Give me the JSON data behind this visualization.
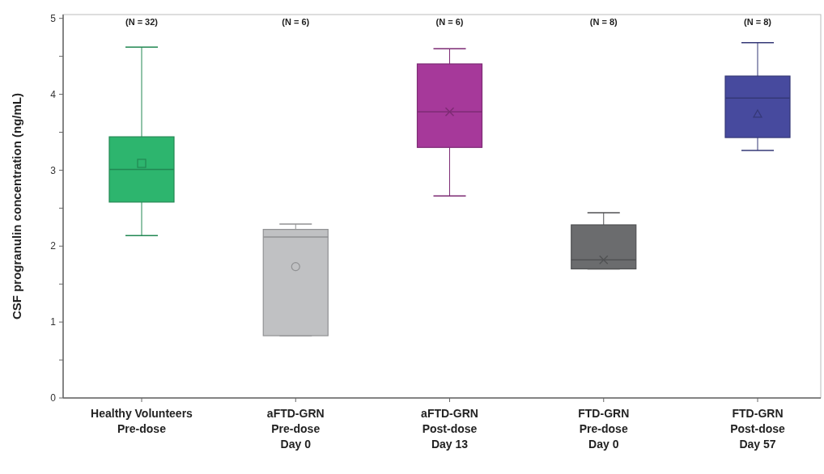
{
  "chart_data": {
    "type": "box",
    "ylabel": "CSF progranulin concentration (ng/mL)",
    "categories": [
      "Healthy Volunteers\nPre-dose",
      "aFTD-GRN\nPre-dose\nDay 0",
      "aFTD-GRN\nPost-dose\nDay 13",
      "FTD-GRN\nPre-dose\nDay 0",
      "FTD-GRN\nPost-dose\nDay 57"
    ],
    "series": [
      {
        "color": "#2db56e",
        "marker": "square",
        "boxes": [
          {
            "low": 2.14,
            "q1": 2.58,
            "median": 3.01,
            "q3": 3.44,
            "high": 4.62,
            "mean": 3.09
          },
          null,
          null,
          null,
          null
        ]
      },
      {
        "color": "#c0c1c3",
        "marker": "circle",
        "boxes": [
          null,
          {
            "low": 0.82,
            "q1": 0.82,
            "median": 2.12,
            "q3": 2.22,
            "high": 2.29,
            "mean": 1.73
          },
          null,
          null,
          null
        ]
      },
      {
        "color": "#a6399a",
        "marker": "cross",
        "boxes": [
          null,
          null,
          {
            "low": 2.66,
            "q1": 3.3,
            "median": 3.77,
            "q3": 4.4,
            "high": 4.6,
            "mean": 3.77
          },
          null,
          null
        ]
      },
      {
        "color": "#6b6c6e",
        "marker": "cross",
        "boxes": [
          null,
          null,
          null,
          {
            "low": 1.7,
            "q1": 1.7,
            "median": 1.82,
            "q3": 2.28,
            "high": 2.44,
            "mean": 1.82
          },
          null
        ]
      },
      {
        "color": "#474a9e",
        "marker": "triangle",
        "boxes": [
          null,
          null,
          null,
          null,
          {
            "low": 3.26,
            "q1": 3.43,
            "median": 3.95,
            "q3": 4.24,
            "high": 4.68,
            "mean": 3.74
          }
        ]
      }
    ],
    "ylim": [
      0,
      5.05
    ],
    "yticks": [
      0,
      {
        "value": 0.5,
        "label": null
      },
      1,
      {
        "value": 1.5,
        "label": null
      },
      2,
      {
        "value": 2.5,
        "label": null
      },
      3,
      {
        "value": 3.5,
        "label": null
      },
      4,
      {
        "value": 4.5,
        "label": null
      },
      5
    ],
    "annotations": [
      "(N = 32)",
      "(N = 6)",
      "(N = 6)",
      "(N = 8)",
      "(N = 8)"
    ],
    "grid": false
  }
}
